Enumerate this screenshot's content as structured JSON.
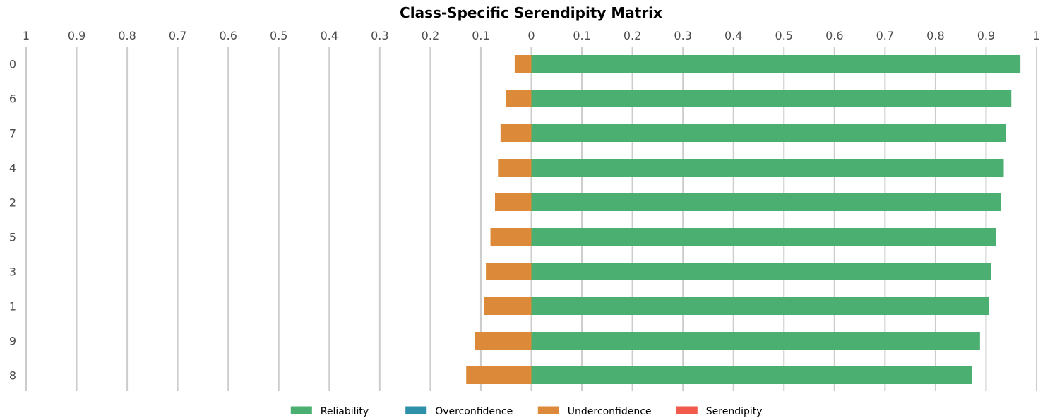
{
  "chart_data": {
    "type": "bar",
    "orientation": "horizontal-diverging",
    "title": "Class-Specific Serendipity Matrix",
    "categories": [
      "0",
      "6",
      "7",
      "4",
      "2",
      "5",
      "3",
      "1",
      "9",
      "8"
    ],
    "x_tick_labels": [
      "1",
      "0.9",
      "0.8",
      "0.7",
      "0.6",
      "0.5",
      "0.4",
      "0.3",
      "0.2",
      "0.1",
      "0",
      "0.1",
      "0.2",
      "0.3",
      "0.4",
      "0.5",
      "0.6",
      "0.7",
      "0.8",
      "0.9",
      "1"
    ],
    "xlim": [
      -1,
      1
    ],
    "grid": true,
    "legend_position": "bottom",
    "series": [
      {
        "name": "Reliability",
        "color": "#4aaf70",
        "direction": "right",
        "values": [
          0.968,
          0.95,
          0.939,
          0.935,
          0.929,
          0.919,
          0.91,
          0.906,
          0.888,
          0.872
        ]
      },
      {
        "name": "Overconfidence",
        "color": "#2e8fa8",
        "direction": "right",
        "values": [
          0,
          0,
          0,
          0,
          0,
          0,
          0,
          0,
          0,
          0
        ]
      },
      {
        "name": "Underconfidence",
        "color": "#dc8a3a",
        "direction": "left",
        "values": [
          0.033,
          0.05,
          0.061,
          0.066,
          0.072,
          0.081,
          0.09,
          0.094,
          0.112,
          0.129
        ]
      },
      {
        "name": "Serendipity",
        "color": "#f25b4c",
        "direction": "left",
        "values": [
          0,
          0,
          0,
          0,
          0,
          0,
          0,
          0,
          0,
          0
        ]
      }
    ]
  }
}
